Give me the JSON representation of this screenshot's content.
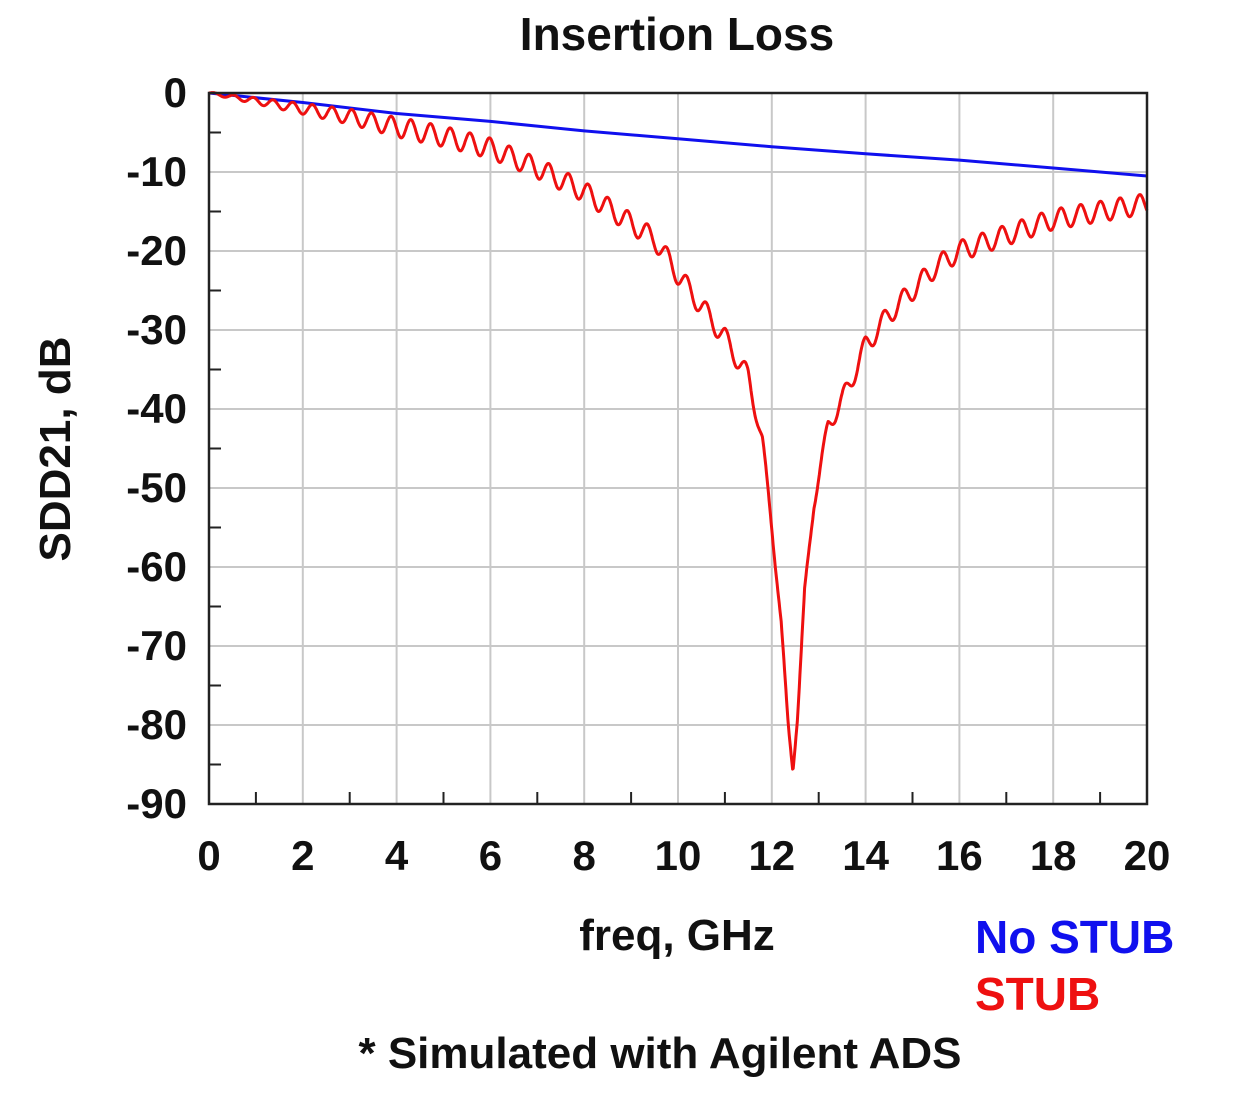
{
  "chart_data": {
    "type": "line",
    "title": "Insertion Loss",
    "xlabel": "freq, GHz",
    "ylabel": "SDD21, dB",
    "xlim": [
      0,
      20
    ],
    "ylim": [
      -90,
      0
    ],
    "x_ticks": [
      0,
      2,
      4,
      6,
      8,
      10,
      12,
      14,
      16,
      18,
      20
    ],
    "y_ticks": [
      0,
      -10,
      -20,
      -30,
      -40,
      -50,
      -60,
      -70,
      -80,
      -90
    ],
    "grid": true,
    "legend_position": "bottom-right outside plot",
    "series": [
      {
        "name": "No STUB",
        "color": "#1010ee",
        "x": [
          0,
          2,
          4,
          6,
          8,
          10,
          12,
          14,
          16,
          18,
          20
        ],
        "y": [
          0,
          -1.2,
          -2.6,
          -3.6,
          -4.8,
          -5.8,
          -6.8,
          -7.7,
          -8.5,
          -9.5,
          -10.5
        ]
      },
      {
        "name": "STUB",
        "color": "#ee1010",
        "x": [
          0,
          1,
          2,
          3,
          4,
          5,
          6,
          7,
          8,
          8.5,
          9,
          9.5,
          10,
          10.5,
          11,
          11.5,
          11.8,
          12,
          12.2,
          12.35,
          12.45,
          12.55,
          12.7,
          12.9,
          13.2,
          13.5,
          14,
          14.5,
          15,
          15.5,
          16,
          17,
          18,
          19,
          20
        ],
        "y": [
          0,
          -1.0,
          -2.0,
          -3.0,
          -4.3,
          -5.5,
          -7.0,
          -9.5,
          -12.5,
          -14.5,
          -16.5,
          -18.5,
          -23,
          -27,
          -31,
          -36,
          -44,
          -55,
          -67,
          -80,
          -86,
          -79,
          -63,
          -52,
          -42,
          -39,
          -32,
          -28,
          -25,
          -22,
          -20,
          -18,
          -16,
          -15,
          -14
        ],
        "ripple": true
      }
    ]
  },
  "footnote": "* Simulated with Agilent ADS"
}
